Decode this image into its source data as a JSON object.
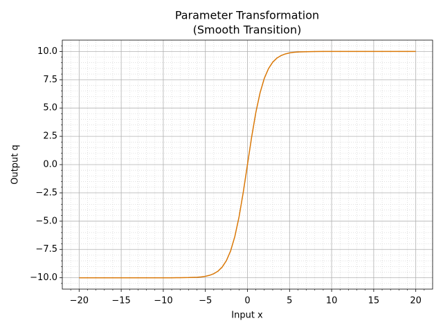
{
  "chart_data": {
    "type": "line",
    "title": "Parameter Transformation",
    "subtitle": "(Smooth Transition)",
    "x_label": "Input x",
    "y_label": "Output q",
    "x": [
      -20,
      -18,
      -16,
      -14,
      -12,
      -10,
      -9,
      -8,
      -7,
      -6,
      -5.5,
      -5,
      -4.5,
      -4,
      -3.5,
      -3,
      -2.5,
      -2,
      -1.5,
      -1,
      -0.5,
      0,
      0.5,
      1,
      1.5,
      2,
      2.5,
      3,
      3.5,
      4,
      4.5,
      5,
      5.5,
      6,
      7,
      8,
      9,
      10,
      12,
      14,
      16,
      18,
      20
    ],
    "series": [
      {
        "color": "#d97706",
        "values": [
          -10,
          -10,
          -10,
          -10,
          -10,
          -10,
          -10,
          -9.99,
          -9.98,
          -9.95,
          -9.92,
          -9.87,
          -9.78,
          -9.64,
          -9.41,
          -9.05,
          -8.48,
          -7.62,
          -6.35,
          -4.62,
          -2.45,
          0,
          2.45,
          4.62,
          6.35,
          7.62,
          8.48,
          9.05,
          9.41,
          9.64,
          9.78,
          9.87,
          9.92,
          9.95,
          9.98,
          9.99,
          10,
          10,
          10,
          10,
          10,
          10,
          10
        ]
      }
    ],
    "xlim": [
      -22,
      22
    ],
    "ylim": [
      -11,
      11
    ],
    "xticks": [
      {
        "value": -20,
        "label": "−20"
      },
      {
        "value": -15,
        "label": "−15"
      },
      {
        "value": -10,
        "label": "−10"
      },
      {
        "value": -5,
        "label": "−5"
      },
      0,
      5,
      10,
      15,
      20
    ],
    "yticks": [
      {
        "value": -10,
        "label": "−10.0"
      },
      {
        "value": -7.5,
        "label": "−7.5"
      },
      {
        "value": -5,
        "label": "−5.0"
      },
      {
        "value": -2.5,
        "label": "−2.5"
      },
      {
        "value": 0,
        "label": "0.0"
      },
      {
        "value": 2.5,
        "label": "2.5"
      },
      {
        "value": 5,
        "label": "5.0"
      },
      {
        "value": 7.5,
        "label": "7.5"
      },
      {
        "value": 10,
        "label": "10.0"
      }
    ],
    "xminorticks": [
      -21,
      -19,
      -18,
      -17,
      -16,
      -14,
      -13,
      -12,
      -11,
      -9,
      -8,
      -7,
      -6,
      -4,
      -3,
      -2,
      -1,
      1,
      2,
      3,
      4,
      6,
      7,
      8,
      9,
      11,
      12,
      13,
      14,
      16,
      17,
      18,
      19,
      21
    ],
    "yminorticks": [
      -10.5,
      -9.5,
      -9,
      -8.5,
      -8,
      -7,
      -6.5,
      -6,
      -5.5,
      -4.5,
      -4,
      -3.5,
      -3,
      -2,
      -1.5,
      -1,
      -0.5,
      0.5,
      1,
      1.5,
      2,
      3,
      3.5,
      4,
      4.5,
      5.5,
      6,
      6.5,
      7,
      8,
      8.5,
      9,
      9.5,
      10.5
    ],
    "grid": true,
    "minor_grid": true
  }
}
